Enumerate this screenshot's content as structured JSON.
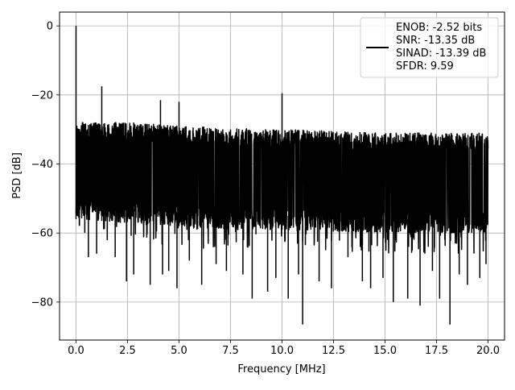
{
  "chart_data": {
    "type": "line",
    "title": "",
    "xlabel": "Frequency [MHz]",
    "ylabel": "PSD [dB]",
    "xlim": [
      -0.8,
      20.8
    ],
    "ylim": [
      -91,
      4
    ],
    "x_ticks": [
      0.0,
      2.5,
      5.0,
      7.5,
      10.0,
      12.5,
      15.0,
      17.5,
      20.0
    ],
    "x_tick_labels": [
      "0.0",
      "2.5",
      "5.0",
      "7.5",
      "10.0",
      "12.5",
      "15.0",
      "17.5",
      "20.0"
    ],
    "y_ticks": [
      0,
      -20,
      -40,
      -60,
      -80
    ],
    "y_tick_labels": [
      "0",
      "−20",
      "−40",
      "−60",
      "−80"
    ],
    "grid": true,
    "legend": {
      "placement": "top-right",
      "entries": [
        "ENOB: -2.52 bits\nSNR: -13.35 dB\nSINAD: -13.39 dB\nSFDR: 9.59"
      ]
    },
    "series": [
      {
        "color": "#000000",
        "noise_band_top": [
          [
            0.0,
            -28
          ],
          [
            2.5,
            -28
          ],
          [
            5.0,
            -29
          ],
          [
            7.5,
            -29.5
          ],
          [
            10.0,
            -30
          ],
          [
            12.5,
            -30.5
          ],
          [
            15.0,
            -31
          ],
          [
            17.5,
            -31
          ],
          [
            20.0,
            -31
          ]
        ],
        "noise_band_bottom": [
          [
            0.0,
            -56
          ],
          [
            2.5,
            -57
          ],
          [
            5.0,
            -58
          ],
          [
            7.5,
            -59
          ],
          [
            10.0,
            -59
          ],
          [
            12.5,
            -59.5
          ],
          [
            15.0,
            -60
          ],
          [
            17.5,
            -60
          ],
          [
            20.0,
            -60
          ]
        ],
        "peaks": [
          {
            "x": 0.0,
            "y": 0
          },
          {
            "x": 1.25,
            "y": -17.5
          },
          {
            "x": 4.1,
            "y": -21.5
          },
          {
            "x": 5.0,
            "y": -22
          },
          {
            "x": 10.0,
            "y": -19.5
          }
        ],
        "dips": [
          {
            "x": 0.6,
            "y": -67
          },
          {
            "x": 1.0,
            "y": -66
          },
          {
            "x": 1.9,
            "y": -67
          },
          {
            "x": 2.45,
            "y": -74
          },
          {
            "x": 2.8,
            "y": -72
          },
          {
            "x": 3.6,
            "y": -75
          },
          {
            "x": 4.2,
            "y": -72
          },
          {
            "x": 4.5,
            "y": -71
          },
          {
            "x": 4.9,
            "y": -76
          },
          {
            "x": 5.5,
            "y": -68
          },
          {
            "x": 6.1,
            "y": -75
          },
          {
            "x": 6.8,
            "y": -69
          },
          {
            "x": 7.3,
            "y": -71
          },
          {
            "x": 8.1,
            "y": -72
          },
          {
            "x": 8.55,
            "y": -79
          },
          {
            "x": 9.3,
            "y": -77
          },
          {
            "x": 9.7,
            "y": -73
          },
          {
            "x": 10.3,
            "y": -79
          },
          {
            "x": 10.8,
            "y": -72
          },
          {
            "x": 11.0,
            "y": -86.5
          },
          {
            "x": 11.8,
            "y": -74
          },
          {
            "x": 12.4,
            "y": -76
          },
          {
            "x": 13.2,
            "y": -67
          },
          {
            "x": 13.9,
            "y": -74
          },
          {
            "x": 14.3,
            "y": -76
          },
          {
            "x": 14.9,
            "y": -73
          },
          {
            "x": 15.4,
            "y": -80
          },
          {
            "x": 16.1,
            "y": -79
          },
          {
            "x": 16.7,
            "y": -81
          },
          {
            "x": 17.3,
            "y": -71
          },
          {
            "x": 17.65,
            "y": -79
          },
          {
            "x": 18.15,
            "y": -86.5
          },
          {
            "x": 18.6,
            "y": -72
          },
          {
            "x": 19.0,
            "y": -75
          },
          {
            "x": 19.6,
            "y": -73
          },
          {
            "x": 19.9,
            "y": -69
          }
        ]
      }
    ]
  }
}
